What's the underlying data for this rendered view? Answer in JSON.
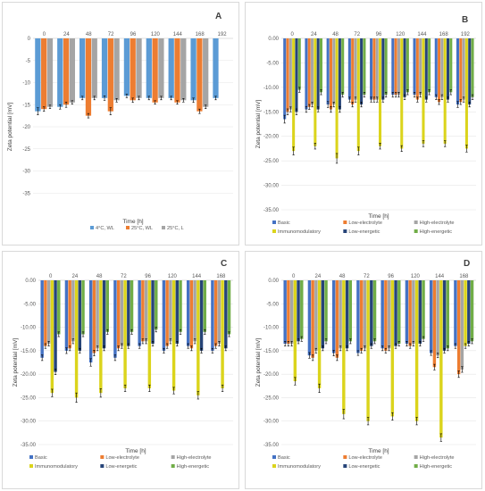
{
  "chart_data": [
    {
      "panel_label": "A",
      "type": "bar",
      "categories": [
        "0",
        "24",
        "48",
        "72",
        "96",
        "120",
        "144",
        "168",
        "192"
      ],
      "xlabel": "Time [h]",
      "ylabel": "Zeta potential [mV]",
      "ylim": [
        -40,
        0
      ],
      "yticks": [
        0,
        -5,
        -10,
        -15,
        -20,
        -25,
        -30,
        -35
      ],
      "ytick_labels": [
        "0",
        "-5",
        "-10",
        "-15",
        "-20",
        "-25",
        "-30",
        "-35"
      ],
      "legend_position": "bottom",
      "grid": true,
      "series": [
        {
          "name": "4°C, WL",
          "color": "#5b9bd5",
          "values": [
            -16.5,
            -15.5,
            -13.5,
            -13.5,
            -13.0,
            -13.5,
            -13.5,
            -14.0,
            -13.5
          ],
          "errors": [
            0.8,
            0.5,
            0.4,
            0.5,
            0.4,
            0.4,
            0.4,
            0.5,
            0.4
          ]
        },
        {
          "name": "25°C, WL",
          "color": "#ed7d31",
          "values": [
            -16.0,
            -15.0,
            -17.5,
            -16.5,
            -14.0,
            -14.5,
            -14.5,
            -16.5,
            null
          ],
          "errors": [
            0.5,
            0.6,
            0.5,
            0.8,
            0.5,
            0.4,
            0.4,
            0.5,
            null
          ]
        },
        {
          "name": "25°C, L",
          "color": "#a5a5a5",
          "values": [
            -15.5,
            -14.5,
            -13.5,
            -14.0,
            -13.5,
            -13.5,
            -14.0,
            -15.5,
            null
          ],
          "errors": [
            0.4,
            0.4,
            0.4,
            0.4,
            0.4,
            0.4,
            0.4,
            0.4,
            null
          ]
        }
      ]
    },
    {
      "panel_label": "B",
      "type": "bar",
      "categories": [
        "0",
        "24",
        "48",
        "72",
        "96",
        "120",
        "144",
        "168",
        "192"
      ],
      "xlabel": "Time [h]",
      "ylabel": "Zeta potential [mV]",
      "ylim": [
        -35,
        0
      ],
      "yticks": [
        0,
        -5,
        -10,
        -15,
        -20,
        -25,
        -30,
        -35
      ],
      "ytick_labels": [
        "0.00",
        "-5.00",
        "-10.00",
        "-15.00",
        "-20.00",
        "-25.00",
        "-30.00",
        "-35.00"
      ],
      "legend_position": "bottom",
      "grid": true,
      "series": [
        {
          "name": "Basic",
          "color": "#4472c4",
          "values": [
            -16.5,
            -14.5,
            -13.5,
            -12.5,
            -12.5,
            -11.5,
            -11.5,
            -12.0,
            -13.5
          ],
          "errors": [
            0.8,
            0.6,
            0.6,
            0.5,
            0.5,
            0.5,
            0.5,
            0.5,
            0.6
          ]
        },
        {
          "name": "Low-electrolyte",
          "color": "#ed7d31",
          "values": [
            -15.0,
            -14.0,
            -14.5,
            -13.5,
            -12.5,
            -11.5,
            -12.5,
            -13.0,
            -13.0
          ],
          "errors": [
            0.6,
            0.5,
            0.6,
            0.5,
            0.5,
            0.5,
            0.5,
            0.5,
            0.5
          ]
        },
        {
          "name": "High-electrolyte",
          "color": "#a5a5a5",
          "values": [
            -14.5,
            -13.5,
            -13.5,
            -12.5,
            -12.5,
            -11.5,
            -11.5,
            -12.0,
            -12.5
          ],
          "errors": [
            0.5,
            0.5,
            0.5,
            0.5,
            0.5,
            0.5,
            0.5,
            0.5,
            0.5
          ]
        },
        {
          "name": "Immunomodulatory",
          "color": "#dbd41c",
          "values": [
            -23.0,
            -22.0,
            -24.5,
            -23.0,
            -22.0,
            -22.5,
            -21.5,
            -21.5,
            -22.5
          ],
          "errors": [
            0.8,
            0.6,
            1.0,
            0.8,
            0.6,
            0.6,
            0.6,
            0.6,
            0.7
          ]
        },
        {
          "name": "Low-energetic",
          "color": "#264478",
          "values": [
            -15.0,
            -14.5,
            -14.5,
            -13.5,
            -12.5,
            -12.0,
            -12.5,
            -12.5,
            -13.5
          ],
          "errors": [
            0.6,
            0.5,
            0.6,
            0.5,
            0.5,
            0.5,
            0.5,
            0.5,
            0.5
          ]
        },
        {
          "name": "High-energetic",
          "color": "#70ad47",
          "values": [
            -10.5,
            -11.0,
            -11.5,
            -11.5,
            -11.5,
            -11.0,
            -11.0,
            -11.0,
            -12.0
          ],
          "errors": [
            0.5,
            0.5,
            0.5,
            0.5,
            0.5,
            0.5,
            0.5,
            0.5,
            0.5
          ]
        }
      ]
    },
    {
      "panel_label": "C",
      "type": "bar",
      "categories": [
        "0",
        "24",
        "48",
        "72",
        "96",
        "120",
        "144",
        "168"
      ],
      "xlabel": "Time [h]",
      "ylabel": "Zeta potential [mV]",
      "ylim": [
        -35,
        0
      ],
      "yticks": [
        0,
        -5,
        -10,
        -15,
        -20,
        -25,
        -30,
        -35
      ],
      "ytick_labels": [
        "0.00",
        "-5.00",
        "-10.00",
        "-15.00",
        "-20.00",
        "-25.00",
        "-30.00",
        "-35.00"
      ],
      "legend_position": "bottom",
      "grid": true,
      "series": [
        {
          "name": "Basic",
          "color": "#4472c4",
          "values": [
            -16.5,
            -15.0,
            -17.5,
            -16.5,
            -14.0,
            -15.0,
            -14.0,
            -15.0
          ],
          "errors": [
            0.6,
            0.6,
            0.8,
            0.6,
            0.5,
            0.5,
            0.5,
            0.5
          ]
        },
        {
          "name": "Low-electrolyte",
          "color": "#ed7d31",
          "values": [
            -14.0,
            -14.5,
            -15.5,
            -14.5,
            -13.0,
            -14.0,
            -14.5,
            -14.0
          ],
          "errors": [
            0.5,
            0.5,
            0.6,
            0.5,
            0.5,
            0.5,
            0.5,
            0.5
          ]
        },
        {
          "name": "High-electrolyte",
          "color": "#a5a5a5",
          "values": [
            -13.5,
            -13.0,
            -14.5,
            -14.0,
            -13.0,
            -13.0,
            -13.0,
            -13.5
          ],
          "errors": [
            0.5,
            0.5,
            0.5,
            0.5,
            0.5,
            0.5,
            0.5,
            0.5
          ]
        },
        {
          "name": "Immunomodulatory",
          "color": "#dbd41c",
          "values": [
            -24.0,
            -25.0,
            -24.0,
            -23.0,
            -23.0,
            -23.5,
            -24.5,
            -23.0
          ],
          "errors": [
            0.8,
            1.0,
            0.9,
            0.7,
            0.7,
            0.7,
            0.8,
            0.7
          ]
        },
        {
          "name": "Low-energetic",
          "color": "#264478",
          "values": [
            -19.5,
            -15.0,
            -14.5,
            -14.0,
            -13.5,
            -13.5,
            -15.0,
            -14.5
          ],
          "errors": [
            0.6,
            0.5,
            0.5,
            0.5,
            0.5,
            0.5,
            0.5,
            0.5
          ]
        },
        {
          "name": "High-energetic",
          "color": "#70ad47",
          "values": [
            -11.5,
            -11.5,
            -11.0,
            -11.0,
            -10.5,
            -11.0,
            -11.0,
            -11.5
          ],
          "errors": [
            0.5,
            0.5,
            0.5,
            0.5,
            0.5,
            0.5,
            0.5,
            0.5
          ]
        }
      ]
    },
    {
      "panel_label": "D",
      "type": "bar",
      "categories": [
        "0",
        "24",
        "48",
        "72",
        "96",
        "120",
        "144",
        "168"
      ],
      "xlabel": "Time [h]",
      "ylabel": "Zeta potential [mV]",
      "ylim": [
        -35,
        0
      ],
      "yticks": [
        0,
        -5,
        -10,
        -15,
        -20,
        -25,
        -30,
        -35
      ],
      "ytick_labels": [
        "0.00",
        "-5.00",
        "-10.00",
        "-15.00",
        "-20.00",
        "-25.00",
        "-30.00",
        "-35.00"
      ],
      "legend_position": "bottom",
      "grid": true,
      "series": [
        {
          "name": "Basic",
          "color": "#4472c4",
          "values": [
            -13.5,
            -16.0,
            -15.5,
            -15.5,
            -14.5,
            -13.5,
            -15.5,
            -14.0
          ],
          "errors": [
            0.5,
            0.6,
            0.6,
            0.5,
            0.5,
            0.5,
            0.5,
            0.5
          ]
        },
        {
          "name": "Low-electrolyte",
          "color": "#ed7d31",
          "values": [
            -13.5,
            -16.5,
            -16.5,
            -15.0,
            -15.0,
            -14.0,
            -18.5,
            -20.0
          ],
          "errors": [
            0.5,
            0.6,
            0.6,
            0.5,
            0.5,
            0.5,
            0.6,
            0.7
          ]
        },
        {
          "name": "High-electrolyte",
          "color": "#a5a5a5",
          "values": [
            -13.5,
            -15.0,
            -14.5,
            -14.5,
            -14.5,
            -13.5,
            -16.0,
            -19.0
          ],
          "errors": [
            0.5,
            0.5,
            0.5,
            0.5,
            0.5,
            0.5,
            0.5,
            0.6
          ]
        },
        {
          "name": "Immunomodulatory",
          "color": "#dbd41c",
          "values": [
            -21.5,
            -23.0,
            -28.5,
            -30.0,
            -29.0,
            -30.0,
            -33.5,
            -14.0
          ],
          "errors": [
            0.8,
            0.9,
            1.0,
            0.8,
            0.8,
            0.8,
            0.8,
            0.5
          ]
        },
        {
          "name": "Low-energetic",
          "color": "#264478",
          "values": [
            -13.0,
            -14.5,
            -14.5,
            -14.0,
            -14.0,
            -13.5,
            -15.0,
            -13.5
          ],
          "errors": [
            0.5,
            0.5,
            0.5,
            0.5,
            0.5,
            0.5,
            0.5,
            0.5
          ]
        },
        {
          "name": "High-energetic",
          "color": "#70ad47",
          "values": [
            -12.5,
            -13.0,
            -13.0,
            -13.0,
            -13.5,
            -12.5,
            -14.5,
            -13.0
          ],
          "errors": [
            0.5,
            0.5,
            0.5,
            0.5,
            0.5,
            0.5,
            0.5,
            0.5
          ]
        }
      ]
    }
  ]
}
